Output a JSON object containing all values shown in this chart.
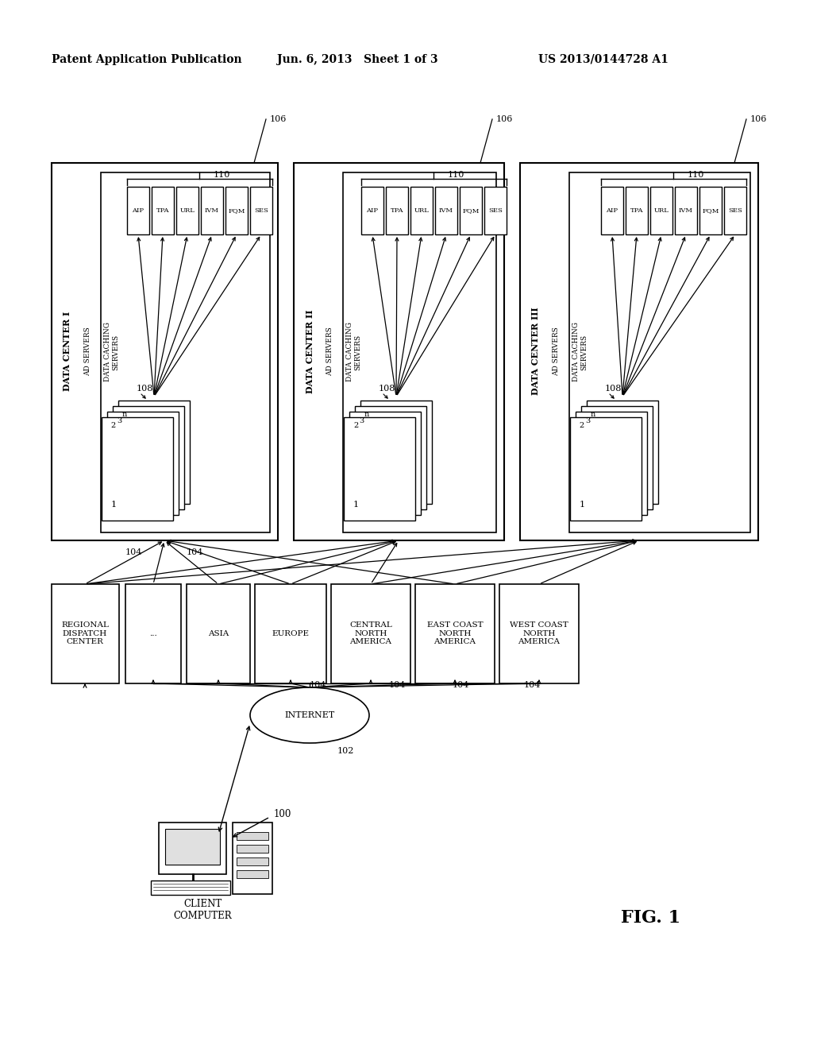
{
  "bg_color": "#ffffff",
  "header_left": "Patent Application Publication",
  "header_mid": "Jun. 6, 2013   Sheet 1 of 3",
  "header_right": "US 2013/0144728 A1",
  "fig_label": "FIG. 1",
  "cache_items": [
    "AIP",
    "TPA",
    "URL",
    "IVM",
    "FQM",
    "SES"
  ],
  "dc_names": [
    "DATA CENTER I",
    "DATA CENTER II",
    "DATA CENTER III"
  ],
  "dispatch_labels": [
    "REGIONAL\nDISPATCH\nCENTER",
    "...",
    "ASIA",
    "EUROPE",
    "CENTRAL\nNORTH\nAMERICA",
    "EAST COAST\nNORTH\nAMERICA",
    "WEST COAST\nNORTH\nAMERICA"
  ]
}
